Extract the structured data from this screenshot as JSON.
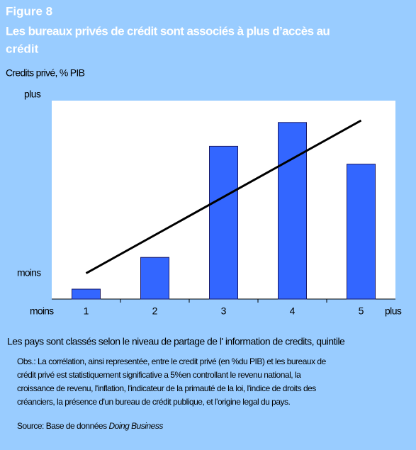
{
  "chart_data": {
    "type": "bar",
    "figure_label": "Figure 8",
    "title": [
      "Les bureaux privés de crédit sont associés à plus d’accès au",
      "crédit"
    ],
    "subtitle": "Credits privé, % PIB",
    "y_label_high": "plus",
    "y_label_low": "moins",
    "x_label_low": "moins",
    "x_label_high": "plus",
    "categories": [
      "1",
      "2",
      "3",
      "4",
      "5"
    ],
    "values": [
      5,
      21,
      77,
      89,
      68
    ],
    "trendline": [
      13,
      90
    ],
    "color": "#3366ff",
    "ylim": [
      0,
      100
    ],
    "x_axis_title": "Les pays sont classés selon le niveau de partage de l' information de credits, quintile",
    "note": [
      "Obs.:  La corrélation, ainsi representée, entre le credit privé (en %du PIB)  et les bureaux de",
      "crédit privé est statistiquement significative a 5%en controllant le revenu national, la",
      "croissance de revenu, l'inflation, l'indicateur de la primauté de la loi, l'indice de droits des",
      "créanciers, la présence d'un bureau de crédit publique, et l'origine legal du pays."
    ],
    "source_prefix": "Source: Base de données ",
    "source_name": "Doing Business"
  }
}
